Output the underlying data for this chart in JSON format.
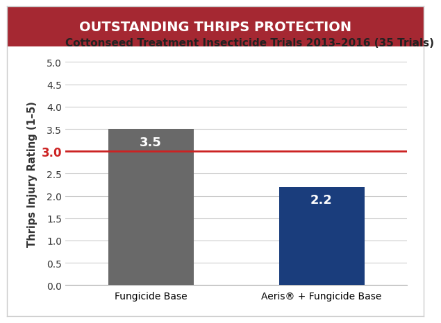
{
  "title": "OUTSTANDING THRIPS PROTECTION",
  "title_bg_color": "#a52832",
  "title_text_color": "#ffffff",
  "title_fontsize": 14,
  "subtitle": "Cottonseed Treatment Insecticide Trials 2013–2016 (35 Trials)",
  "subtitle_fontsize": 11,
  "categories": [
    "Fungicide Base",
    "Aeris® + Fungicide Base"
  ],
  "values": [
    3.5,
    2.2
  ],
  "bar_colors": [
    "#696969",
    "#1a3d7c"
  ],
  "bar_labels": [
    "3.5",
    "2.2"
  ],
  "bar_label_color": "#ffffff",
  "bar_label_fontsize": 13,
  "ylabel": "Thrips Injury Rating (1–5)",
  "ylabel_fontsize": 10.5,
  "ylim": [
    0,
    5.0
  ],
  "yticks": [
    0.0,
    0.5,
    1.0,
    1.5,
    2.0,
    2.5,
    3.0,
    3.5,
    4.0,
    4.5,
    5.0
  ],
  "tick_fontsize": 10,
  "hline_y": 3.0,
  "hline_color": "#cc2222",
  "hline_label_color": "#cc2222",
  "hline_label_fontsize": 12,
  "grid_color": "#cccccc",
  "bg_color": "#ffffff",
  "outer_border_color": "#cccccc"
}
